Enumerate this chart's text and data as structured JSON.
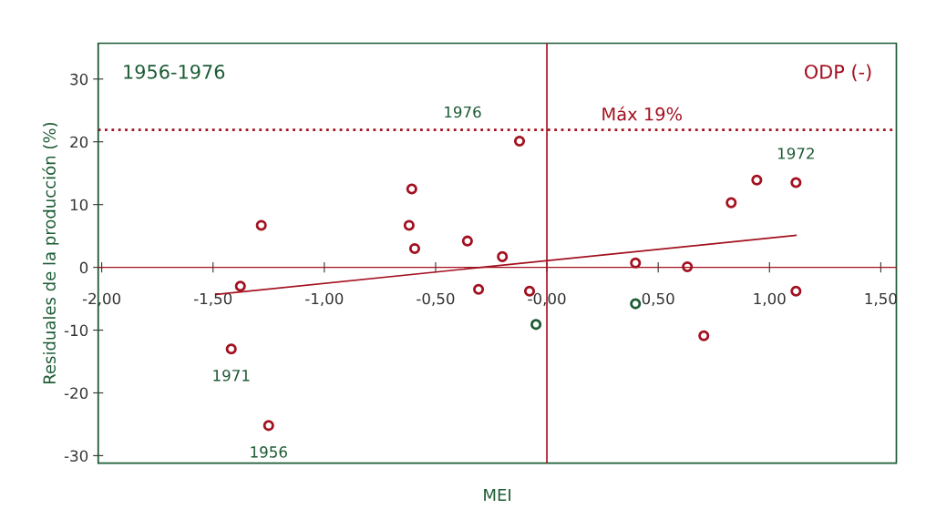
{
  "chart_data": {
    "type": "scatter",
    "xlabel": "MEI",
    "ylabel": "Residuales de la producción (%)",
    "xlim": [
      -2.016,
      1.57
    ],
    "ylim": [
      -31.2,
      35.7
    ],
    "xticks": [
      {
        "value": -2,
        "label": "-2,00"
      },
      {
        "value": -1.5,
        "label": "-1,50"
      },
      {
        "value": -1,
        "label": "-1,00"
      },
      {
        "value": -0.5,
        "label": "-0,50"
      },
      {
        "value": 0,
        "label": "-0,00"
      },
      {
        "value": 0.5,
        "label": "0,50"
      },
      {
        "value": 1,
        "label": "1,00"
      },
      {
        "value": 1.5,
        "label": "1,50"
      }
    ],
    "yticks": [
      -30,
      -20,
      -10,
      0,
      10,
      20,
      30
    ],
    "grid": false,
    "marker": "circle",
    "series": [
      {
        "color": "#a3101f",
        "x": [
          -1.283,
          -1.377,
          -1.418,
          -1.25,
          -0.607,
          -0.619,
          -0.594,
          -0.357,
          -0.307,
          -0.2,
          -0.123,
          -0.078,
          0.398,
          0.631,
          0.705,
          0.828,
          0.943,
          1.119,
          1.119
        ],
        "values": [
          6.7,
          -3.0,
          -13.0,
          -25.2,
          12.5,
          6.7,
          3.0,
          4.2,
          -3.5,
          1.7,
          20.1,
          -3.8,
          0.7,
          0.1,
          -10.9,
          10.3,
          13.9,
          13.5,
          -3.8
        ]
      },
      {
        "color": "#1d5b34",
        "x": [
          -0.049,
          0.398
        ],
        "values": [
          -9.1,
          -5.8
        ]
      },
      {
        "type": "line",
        "marker": "none",
        "color": "#a3101f",
        "x": [
          -1.484,
          1.119
        ],
        "values": [
          -4.3,
          5.1
        ]
      }
    ],
    "ref_lines": [
      {
        "axis": "x",
        "value": 0,
        "color": "#a3101f",
        "line_style": "solid"
      },
      {
        "axis": "y",
        "value": 21.9,
        "label": "Máx 19%",
        "color": "#a3101f",
        "line_style": "dotted"
      }
    ],
    "annotations": [
      "1956-1976",
      "ODP (-)",
      {
        "text": "1976",
        "x": -0.123,
        "y": 20.1
      },
      {
        "text": "1971",
        "x": -1.418,
        "y": -13.0
      },
      {
        "text": "1956",
        "x": -1.25,
        "y": -25.2
      },
      {
        "text": "1972",
        "x": 1.119,
        "y": 13.5
      }
    ]
  }
}
